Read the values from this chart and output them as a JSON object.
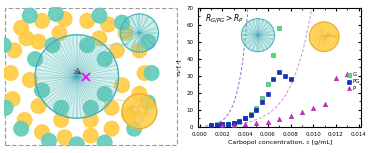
{
  "title_text": "$R_{G/PG} > R_P$",
  "xlabel": "Carbopol concentration, c [g/mL]",
  "ylabel": "$n_b$ [-]",
  "xlim": [
    0.0,
    0.014
  ],
  "ylim": [
    0,
    70
  ],
  "xticks": [
    0.0,
    0.002,
    0.004,
    0.006,
    0.008,
    0.01,
    0.012,
    0.014
  ],
  "yticks": [
    0,
    10,
    20,
    30,
    40,
    50,
    60,
    70
  ],
  "G_x": [
    0.001,
    0.0015,
    0.002,
    0.0025,
    0.003,
    0.0035,
    0.004,
    0.0045,
    0.005,
    0.0055,
    0.006,
    0.0065,
    0.007
  ],
  "G_y": [
    1.2,
    1.5,
    1.8,
    2.0,
    2.5,
    3.2,
    5.0,
    7.5,
    11.0,
    17.0,
    25.0,
    42.0,
    58.0
  ],
  "PG_x": [
    0.001,
    0.0015,
    0.002,
    0.0025,
    0.003,
    0.0035,
    0.004,
    0.0045,
    0.005,
    0.0055,
    0.006,
    0.0065,
    0.007,
    0.0075,
    0.008
  ],
  "PG_y": [
    1.0,
    1.3,
    1.6,
    2.0,
    2.5,
    3.5,
    5.0,
    7.0,
    10.0,
    14.5,
    19.5,
    28.0,
    32.0,
    30.0,
    28.0
  ],
  "P_x": [
    0.002,
    0.003,
    0.004,
    0.005,
    0.006,
    0.007,
    0.008,
    0.009,
    0.01,
    0.011,
    0.012,
    0.013
  ],
  "P_y": [
    1.0,
    1.3,
    1.8,
    2.2,
    3.0,
    4.5,
    6.5,
    8.5,
    11.0,
    13.5,
    29.0,
    31.0
  ],
  "G_color": "#55dd77",
  "PG_color": "#1133bb",
  "P_color": "#cc33cc",
  "teal_color": "#66ccbb",
  "teal_dark": "#44aabb",
  "particle_color": "#ffcc44",
  "particle_dark": "#ddaa22",
  "fit_color_GP": "#9966cc",
  "fit_color_P": "#cc88dd"
}
